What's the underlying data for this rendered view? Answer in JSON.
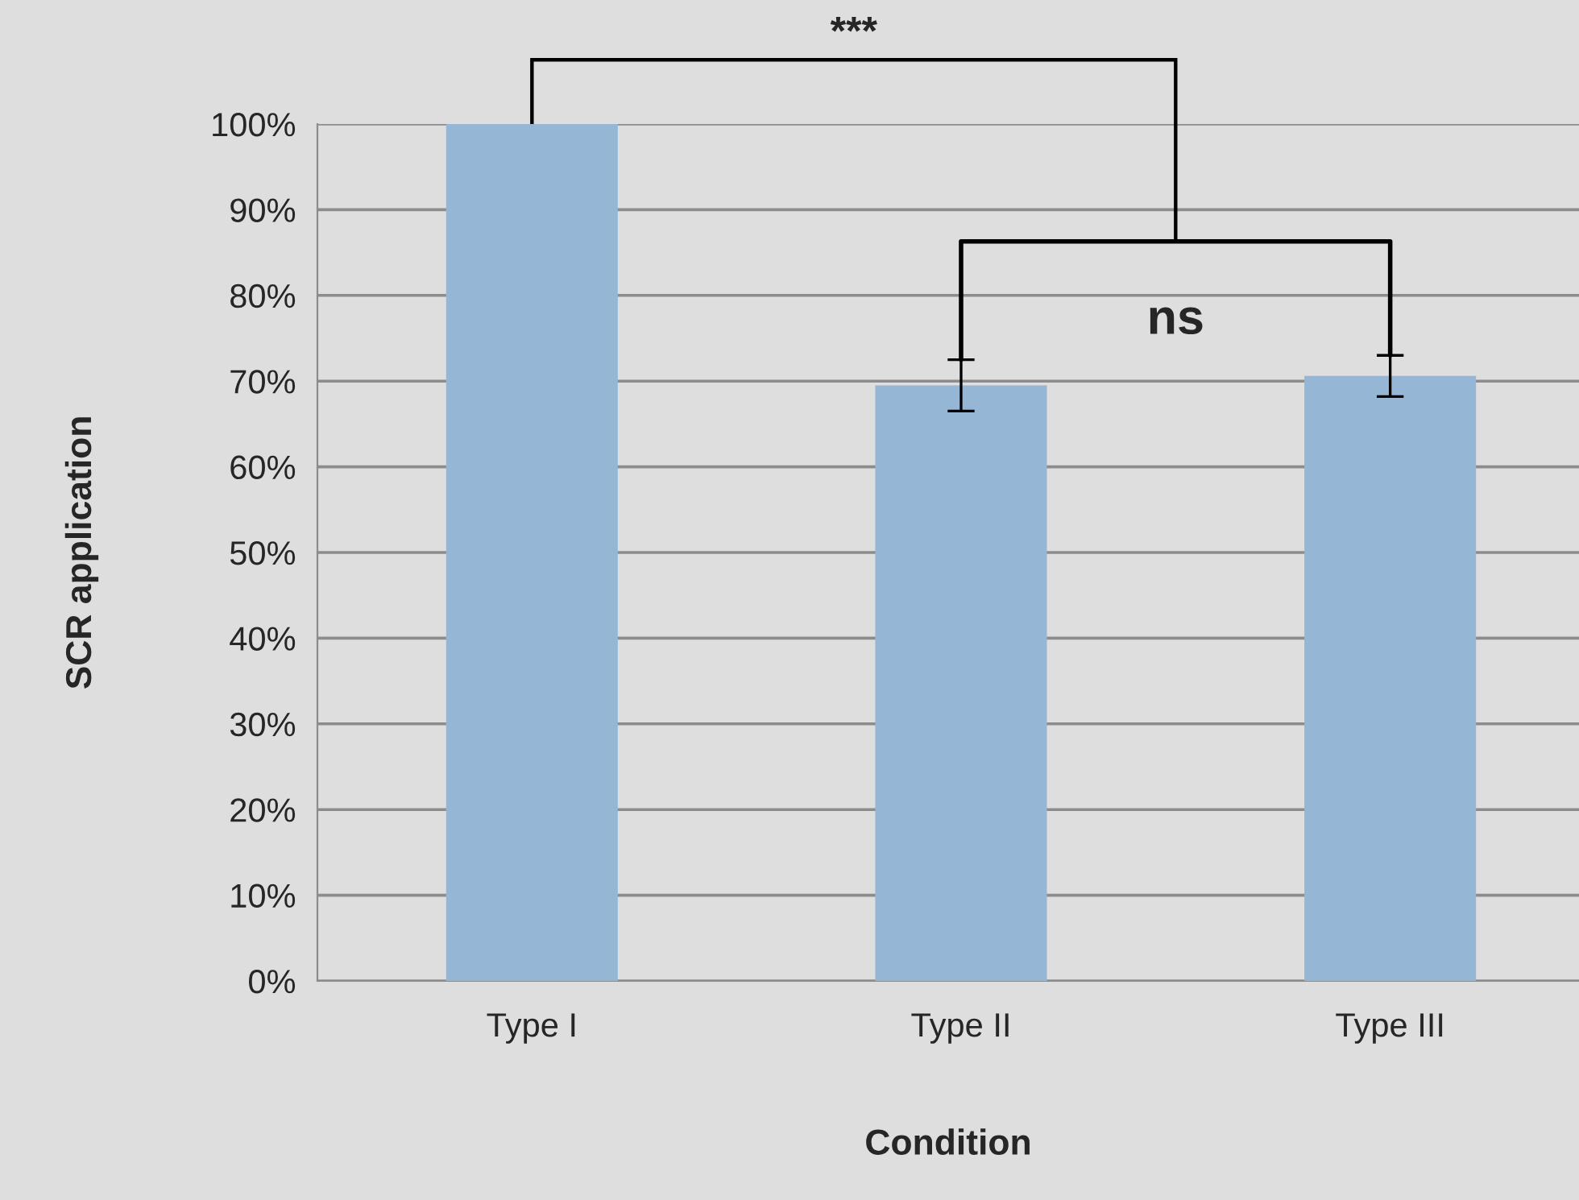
{
  "chart_data": {
    "type": "bar",
    "xlabel": "Condition",
    "ylabel": "SCR application",
    "categories": [
      "Type I",
      "Type II",
      "Type III"
    ],
    "values": [
      100,
      69.5,
      70.6
    ],
    "errors": [
      null,
      3.0,
      2.4
    ],
    "color": "#95b6d4",
    "ylim": [
      0,
      100
    ],
    "yticks": [
      {
        "value": 0,
        "label": "0%"
      },
      {
        "value": 10,
        "label": "10%"
      },
      {
        "value": 20,
        "label": "20%"
      },
      {
        "value": 30,
        "label": "30%"
      },
      {
        "value": 40,
        "label": "40%"
      },
      {
        "value": 50,
        "label": "50%"
      },
      {
        "value": 60,
        "label": "60%"
      },
      {
        "value": 70,
        "label": "70%"
      },
      {
        "value": 80,
        "label": "80%"
      },
      {
        "value": 90,
        "label": "90%"
      },
      {
        "value": 100,
        "label": "100%"
      }
    ],
    "grid": "y",
    "annotations": [
      "***",
      "ns"
    ]
  }
}
